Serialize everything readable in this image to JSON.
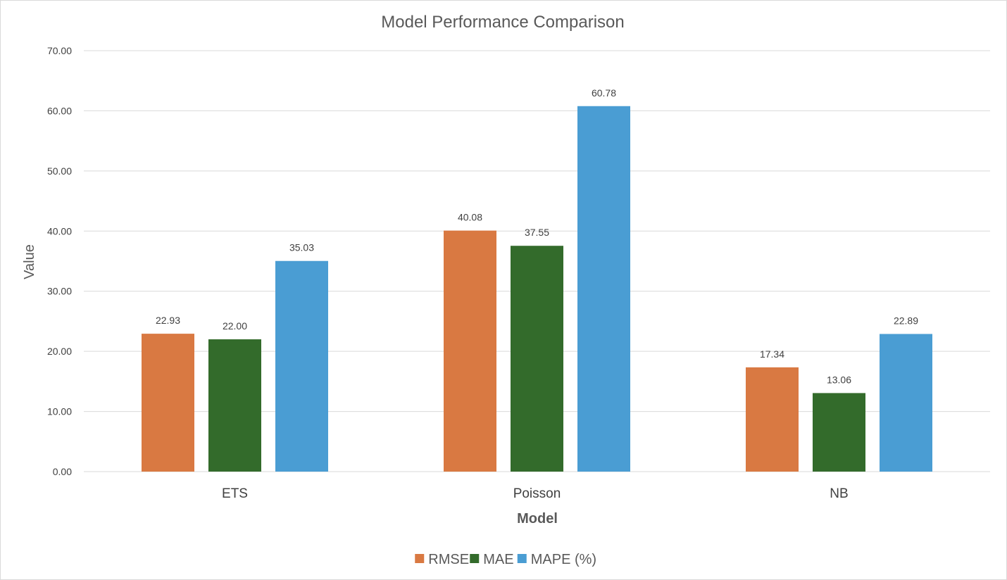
{
  "chart_data": {
    "type": "bar",
    "title": "Model Performance Comparison",
    "xlabel": "Model",
    "ylabel": "Value",
    "categories": [
      "ETS",
      "Poisson",
      "NB"
    ],
    "series": [
      {
        "name": "RMSE",
        "values": [
          22.93,
          40.08,
          17.34
        ],
        "color": "#D97942"
      },
      {
        "name": "MAE",
        "values": [
          22.0,
          37.55,
          13.06
        ],
        "color": "#336B2B"
      },
      {
        "name": "MAPE (%)",
        "values": [
          35.03,
          60.78,
          22.89
        ],
        "color": "#4A9DD3"
      }
    ],
    "ylim": [
      0,
      70
    ],
    "yticks": [
      0,
      10,
      20,
      30,
      40,
      50,
      60,
      70
    ],
    "ytick_labels": [
      "0.00",
      "10.00",
      "20.00",
      "30.00",
      "40.00",
      "50.00",
      "60.00",
      "70.00"
    ],
    "data_labels": [
      [
        "22.93",
        "40.08",
        "17.34"
      ],
      [
        "22.00",
        "37.55",
        "13.06"
      ],
      [
        "35.03",
        "60.78",
        "22.89"
      ]
    ],
    "grid": true,
    "legend_position": "bottom"
  }
}
